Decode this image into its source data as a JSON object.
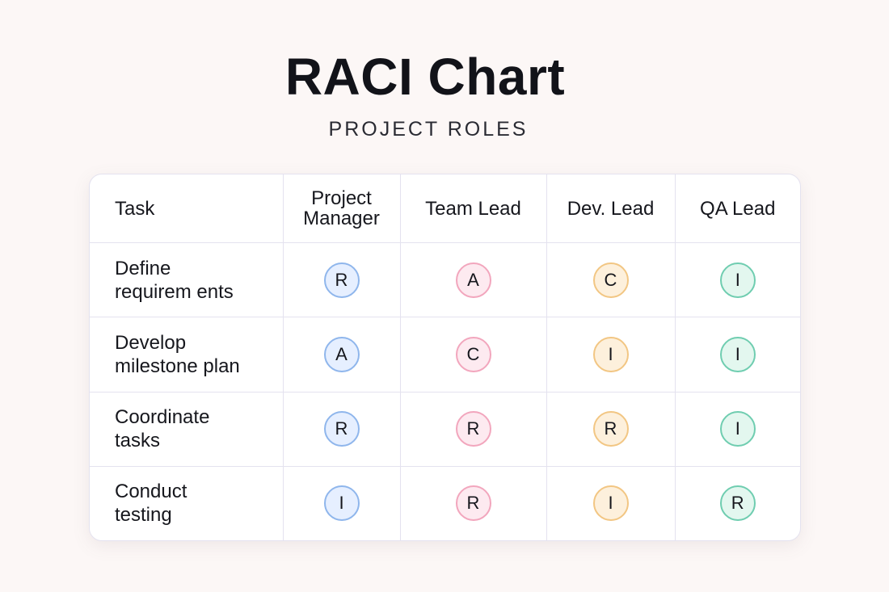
{
  "title": "RACI Chart",
  "subtitle": "PROJECT ROLES",
  "columns": {
    "task": "Task",
    "roles": [
      "Project\nManager",
      "Team Lead",
      "Dev. Lead",
      "QA Lead"
    ]
  },
  "role_colors": [
    {
      "border": "#8fb6ec",
      "fill": "#e6efff"
    },
    {
      "border": "#f2a6bd",
      "fill": "#fdeaf0"
    },
    {
      "border": "#f2c683",
      "fill": "#fdf0dc"
    },
    {
      "border": "#6fcdb0",
      "fill": "#e3f7ef"
    }
  ],
  "rows": [
    {
      "task": "Define\nrequirem ents",
      "cells": [
        "R",
        "A",
        "C",
        "I"
      ]
    },
    {
      "task": "Develop\nmilestone plan",
      "cells": [
        "A",
        "C",
        "I",
        "I"
      ]
    },
    {
      "task": "Coordinate\ntasks",
      "cells": [
        "R",
        "R",
        "R",
        "I"
      ]
    },
    {
      "task": "Conduct\ntesting",
      "cells": [
        "I",
        "R",
        "I",
        "R"
      ]
    }
  ]
}
